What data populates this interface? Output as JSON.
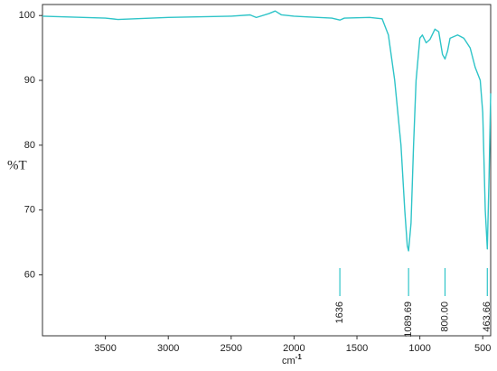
{
  "chart_data": {
    "type": "line",
    "y_label": "%T",
    "x_label": {
      "text": "cm",
      "sup": "-1"
    },
    "xlim": [
      4000,
      437
    ],
    "ylim": [
      50.6,
      101.7
    ],
    "xticks": [
      3500,
      3000,
      2500,
      2000,
      1500,
      1000,
      500
    ],
    "yticks": [
      60,
      70,
      80,
      90,
      100
    ],
    "grid": false,
    "series": [
      {
        "color": "#2ec4c8",
        "x": [
          4000,
          3500,
          3400,
          3000,
          2500,
          2350,
          2300,
          2200,
          2150,
          2100,
          2000,
          1900,
          1700,
          1636,
          1600,
          1400,
          1300,
          1250,
          1200,
          1150,
          1120,
          1100,
          1089.69,
          1070,
          1050,
          1030,
          1000,
          980,
          950,
          920,
          880,
          850,
          820,
          800,
          780,
          760,
          700,
          650,
          600,
          560,
          520,
          500,
          480,
          463.66,
          450,
          437
        ],
        "values": [
          99.9,
          99.6,
          99.4,
          99.7,
          99.9,
          100.1,
          99.7,
          100.3,
          100.7,
          100.1,
          99.9,
          99.8,
          99.6,
          99.3,
          99.6,
          99.7,
          99.5,
          97,
          90,
          80,
          70,
          64.5,
          63.7,
          68,
          80,
          90,
          96.5,
          97,
          95.8,
          96.3,
          97.9,
          97.5,
          94,
          93.3,
          94.5,
          96.5,
          97,
          96.5,
          95,
          92,
          90,
          85,
          70,
          64,
          75,
          88
        ]
      }
    ],
    "annotations": [
      {
        "value": 1636,
        "label": "1636"
      },
      {
        "value": 1089.69,
        "label": "1089.69"
      },
      {
        "value": 800,
        "label": "800.00"
      },
      {
        "value": 463.66,
        "label": "463.66"
      }
    ]
  }
}
